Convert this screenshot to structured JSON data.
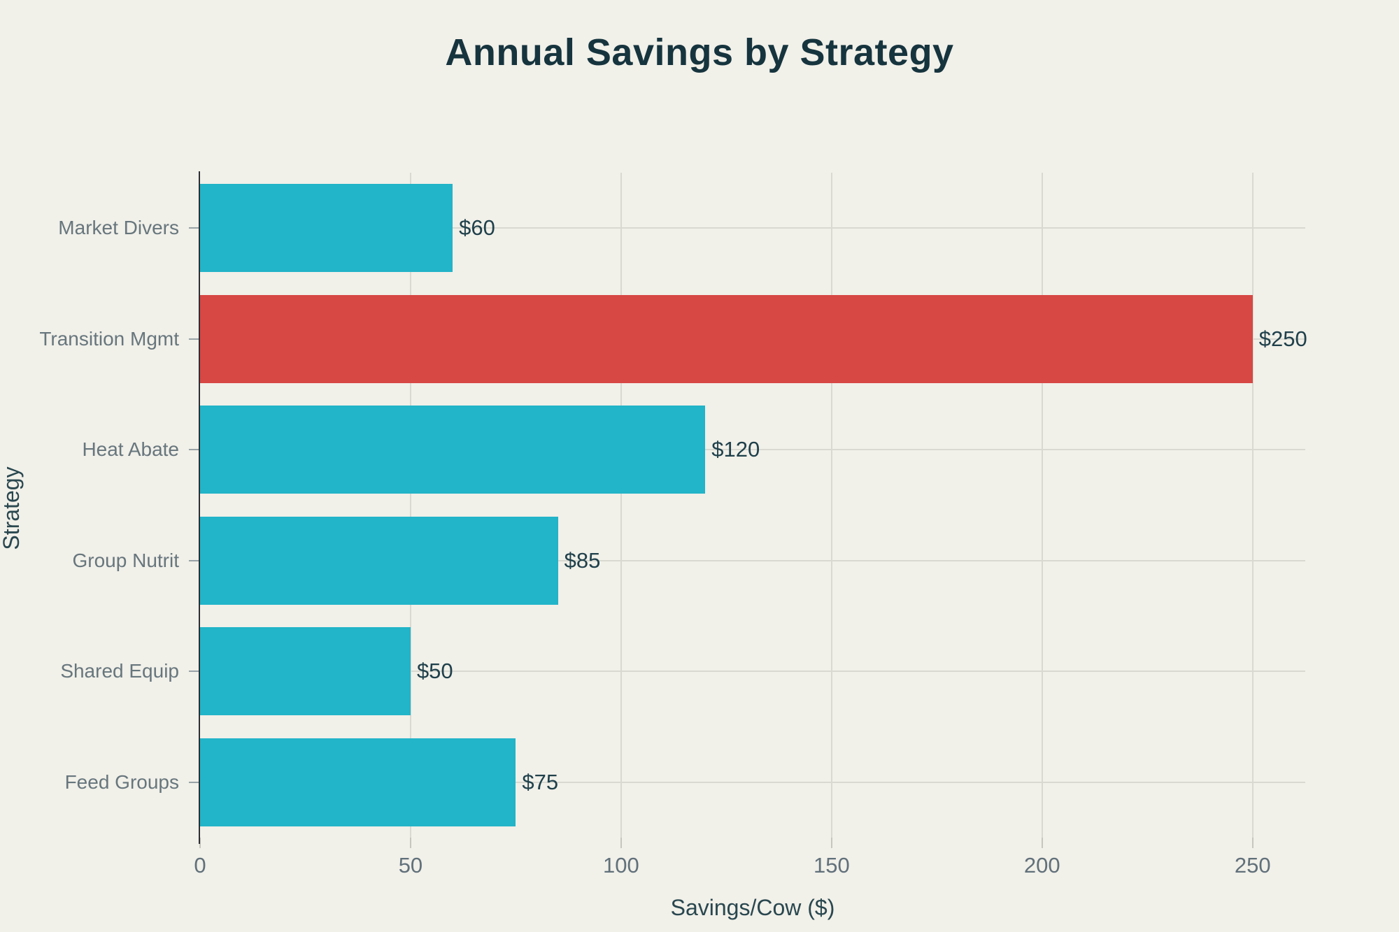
{
  "chart_data": {
    "type": "bar",
    "orientation": "horizontal",
    "title": "Annual Savings by Strategy",
    "xlabel": "Savings/Cow ($)",
    "ylabel": "Strategy",
    "categories": [
      "Market Divers",
      "Transition Mgmt",
      "Heat Abate",
      "Group Nutrit",
      "Shared Equip",
      "Feed Groups"
    ],
    "values": [
      60,
      250,
      120,
      85,
      50,
      75
    ],
    "value_labels": [
      "$60",
      "$250",
      "$120",
      "$85",
      "$50",
      "$75"
    ],
    "bar_colors": [
      "#22B4C8",
      "#D74744",
      "#22B4C8",
      "#22B4C8",
      "#22B4C8",
      "#22B4C8"
    ],
    "highlight_index": 1,
    "x_ticks": [
      0,
      50,
      100,
      150,
      200,
      250
    ],
    "xlim": [
      0,
      262.5
    ],
    "grid": true,
    "legend": false,
    "value_labels_position": "outside-end"
  },
  "colors": {
    "bg": "#F1F0E9",
    "bar-default": "#22B4C8",
    "bar-highlight": "#D74744",
    "grid": "#D9D9D1",
    "axis-line": "#2C3034",
    "title-text": "#16343E",
    "axis-title-text": "#29474F",
    "val-text": "#1F404B",
    "cat-text": "#67767D",
    "tick-text": "#61707A",
    "ytick-dash": "#98A2A6",
    "xtick-dash": "#C6C6BE"
  }
}
